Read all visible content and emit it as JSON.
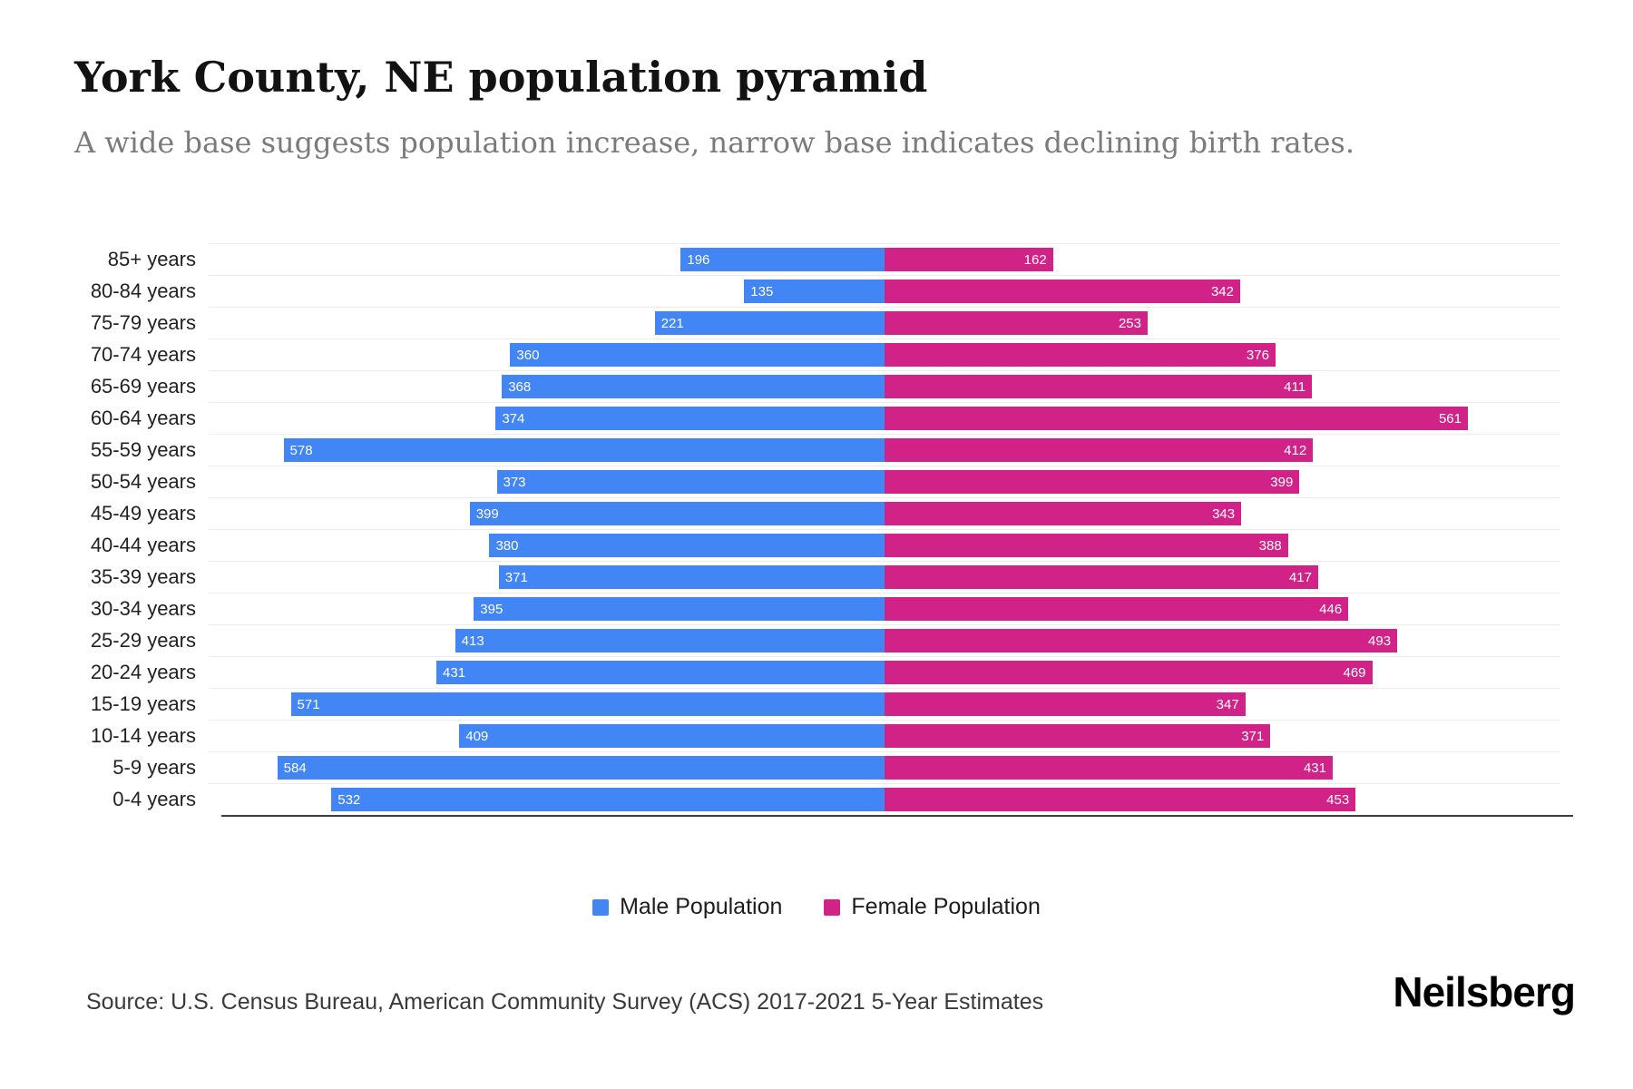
{
  "header": {
    "title": "York County, NE population pyramid",
    "subtitle": "A wide base suggests population increase, narrow base indicates declining birth rates."
  },
  "chart_data": {
    "type": "bar",
    "variant": "population_pyramid",
    "categories": [
      "85+ years",
      "80-84 years",
      "75-79 years",
      "70-74 years",
      "65-69 years",
      "60-64 years",
      "55-59 years",
      "50-54 years",
      "45-49 years",
      "40-44 years",
      "35-39 years",
      "30-34 years",
      "25-29 years",
      "20-24 years",
      "15-19 years",
      "10-14 years",
      "5-9 years",
      "0-4 years"
    ],
    "series": [
      {
        "name": "Male Population",
        "side": "left",
        "color": "#4285F4",
        "values": [
          196,
          135,
          221,
          360,
          368,
          374,
          578,
          373,
          399,
          380,
          371,
          395,
          413,
          431,
          571,
          409,
          584,
          532
        ]
      },
      {
        "name": "Female Population",
        "side": "right",
        "color": "#D02287",
        "values": [
          162,
          342,
          253,
          376,
          411,
          561,
          412,
          399,
          343,
          388,
          417,
          446,
          493,
          469,
          347,
          371,
          431,
          453
        ]
      }
    ],
    "xlim": [
      0,
      650
    ],
    "grid": true,
    "legend_position": "bottom",
    "value_labels": "inside-bar-ends"
  },
  "footer": {
    "source": "Source: U.S. Census Bureau, American Community Survey (ACS) 2017-2021 5-Year Estimates",
    "brand": "Neilsberg"
  }
}
